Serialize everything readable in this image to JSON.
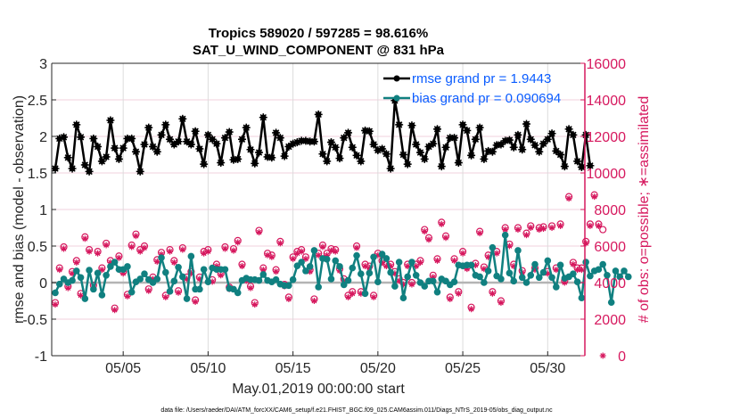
{
  "chart_data": {
    "type": "line",
    "title": [
      "Tropics 589020 / 597285 = 98.616%",
      "SAT_U_WIND_COMPONENT @ 831 hPa"
    ],
    "xlabel": "May.01,2019 00:00:00 start",
    "ylabel": "rmse and bias (model - observation)",
    "ylabel_right": "# of obs: o=possible; ∗=assimilated",
    "xlim_days": [
      0.0,
      31.4
    ],
    "ylim": [
      -1,
      3
    ],
    "ylim_right": [
      0,
      16000
    ],
    "x_ticks": [
      {
        "day": 4,
        "label": "05/05"
      },
      {
        "day": 9,
        "label": "05/10"
      },
      {
        "day": 14,
        "label": "05/15"
      },
      {
        "day": 19,
        "label": "05/20"
      },
      {
        "day": 24,
        "label": "05/25"
      },
      {
        "day": 29,
        "label": "05/30"
      }
    ],
    "y_ticks": [
      {
        "value": 3,
        "label": "3"
      },
      {
        "value": 2.5,
        "label": "2.5"
      },
      {
        "value": 2,
        "label": "2"
      },
      {
        "value": 1.5,
        "label": "1.5"
      },
      {
        "value": 1,
        "label": "1"
      },
      {
        "value": 0.5,
        "label": "0.5"
      },
      {
        "value": 0,
        "label": "0"
      },
      {
        "value": -0.5,
        "label": "-0.5"
      },
      {
        "value": -1,
        "label": "-1"
      }
    ],
    "y_ticks_right": [
      {
        "value": 16000,
        "label": "16000"
      },
      {
        "value": 14000,
        "label": "14000"
      },
      {
        "value": 12000,
        "label": "12000"
      },
      {
        "value": 10000,
        "label": "10000"
      },
      {
        "value": 8000,
        "label": "8000"
      },
      {
        "value": 6000,
        "label": "6000"
      },
      {
        "value": 4000,
        "label": "4000"
      },
      {
        "value": 2000,
        "label": "2000"
      },
      {
        "value": 0,
        "label": "0"
      }
    ],
    "grid": true,
    "legend": {
      "placement": "top-right",
      "entries": [
        {
          "label": "rmse grand pr = 1.9443",
          "color": "#000000",
          "marker": "asterisk"
        },
        {
          "label": "bias grand pr = 0.090694",
          "color": "#108080",
          "marker": "circle"
        }
      ]
    },
    "colors": {
      "rmse": "#000000",
      "bias": "#108080",
      "obs": "#d6185e",
      "zero": "#b4b4b4",
      "grid": "#f0d0dc"
    },
    "time_step_days": 0.25,
    "series": [
      {
        "name": "rmse",
        "values": [
          1.56,
          1.97,
          1.99,
          1.71,
          1.56,
          2.16,
          1.99,
          1.61,
          1.52,
          1.97,
          1.86,
          1.66,
          1.72,
          2.22,
          1.84,
          1.69,
          1.84,
          1.97,
          1.97,
          1.79,
          1.52,
          1.89,
          2.12,
          1.86,
          1.79,
          2.02,
          2.16,
          1.96,
          1.89,
          1.93,
          2.24,
          1.93,
          1.89,
          2.07,
          1.83,
          1.62,
          2.02,
          1.96,
          1.9,
          1.64,
          1.98,
          2.06,
          1.68,
          1.69,
          1.96,
          2.12,
          1.82,
          1.63,
          1.78,
          2.26,
          1.72,
          1.71,
          2.05,
          1.98,
          1.73,
          1.86,
          1.9,
          1.92,
          1.94,
          1.94,
          1.93,
          1.93,
          2.3,
          1.76,
          1.66,
          1.92,
          1.85,
          1.7,
          1.98,
          2.05,
          1.85,
          1.74,
          1.66,
          2.08,
          2.07,
          1.89,
          1.81,
          1.83,
          1.76,
          1.56,
          2.49,
          2.16,
          1.75,
          1.62,
          2.15,
          1.89,
          1.78,
          1.69,
          1.86,
          1.9,
          2.1,
          1.59,
          1.85,
          1.98,
          1.98,
          1.64,
          2.16,
          2.08,
          1.74,
          1.96,
          2.12,
          1.69,
          1.8,
          1.79,
          1.88,
          1.89,
          1.94,
          1.95,
          1.85,
          2.02,
          1.82,
          2.17,
          1.96,
          1.88,
          1.79,
          1.9,
          1.96,
          2.04,
          1.8,
          1.75,
          1.59,
          2.1,
          2.02,
          1.66,
          1.58,
          2.02,
          1.6
        ]
      },
      {
        "name": "bias",
        "values": [
          -0.14,
          -0.02,
          0.05,
          0.0,
          0.03,
          0.16,
          0.07,
          -0.22,
          0.17,
          -0.09,
          0.13,
          -0.17,
          0.1,
          0.22,
          0.28,
          0.18,
          0.18,
          0.22,
          -0.13,
          0.01,
          0.05,
          0.12,
          0.04,
          0.0,
          0.05,
          0.34,
          0.14,
          -0.12,
          0.02,
          0.21,
          0.08,
          -0.22,
          0.36,
          -0.09,
          -0.09,
          0.18,
          0.01,
          0.2,
          0.18,
          0.18,
          0.18,
          -0.08,
          -0.09,
          -0.14,
          0.03,
          0.06,
          0.04,
          0.04,
          0.03,
          0.11,
          0.03,
          0.01,
          0.04,
          -0.02,
          -0.04,
          -0.04,
          0.04,
          0.23,
          0.28,
          0.16,
          0.22,
          0.44,
          -0.06,
          0.33,
          0.32,
          0.05,
          0.3,
          0.22,
          -0.03,
          0.03,
          0.2,
          0.37,
          0.12,
          -0.15,
          0.13,
          0.35,
          0.01,
          0.39,
          0.33,
          0.14,
          -0.05,
          0.28,
          -0.21,
          0.08,
          0.28,
          0.1,
          0.0,
          -0.05,
          0.02,
          0.02,
          -0.13,
          0.05,
          0.02,
          -0.03,
          0.01,
          0.24,
          0.23,
          0.24,
          0.24,
          0.1,
          0.08,
          0.0,
          0.16,
          0.48,
          0.09,
          0.05,
          0.65,
          0.13,
          0.02,
          0.44,
          0.07,
          0.0,
          0.1,
          0.25,
          0.07,
          0.14,
          0.3,
          0.07,
          -0.06,
          0.24,
          0.06,
          0.08,
          0.12,
          0.01,
          -0.21,
          0.28,
          0.09,
          0.16,
          0.18,
          0.25,
          0.1,
          -0.27,
          0.16,
          0.08,
          0.16,
          0.08
        ],
        "note": "approximate, read from chart"
      },
      {
        "name": "obs_possible",
        "axis": "right",
        "values": [
          2900,
          4800,
          5950,
          3800,
          4600,
          5200,
          3400,
          6500,
          5800,
          3850,
          5700,
          4800,
          6150,
          5200,
          2600,
          5450,
          4600,
          3350,
          6050,
          6650,
          5800,
          6000,
          3650,
          4300,
          5250,
          5650,
          3300,
          5800,
          5200,
          3550,
          5900,
          4300,
          4600,
          3050,
          4300,
          5700,
          5800,
          4150,
          5000,
          4500,
          5950,
          3750,
          5850,
          6300,
          5000,
          4200,
          3800,
          2900,
          6850,
          4800,
          5600,
          5500,
          4700,
          6250,
          3900,
          3200,
          5400,
          5700,
          5800,
          5400,
          4700,
          3100,
          5600,
          6050,
          5600,
          5850,
          5800,
          4750,
          4200,
          3300,
          3500,
          6000,
          3500,
          5000,
          4900,
          3300,
          5600,
          5200,
          5000,
          5000,
          4600,
          4200,
          4000,
          5000,
          4000,
          5000,
          5200,
          6900,
          6450,
          4400,
          5300,
          7300,
          6550,
          3200,
          5300,
          3500,
          5700,
          4850,
          2650,
          5050,
          6800,
          4850,
          5500,
          3500,
          5700,
          3000,
          7000,
          6100,
          5000,
          7000,
          4650,
          6700,
          7100,
          4800,
          7000,
          7050,
          4600,
          7100,
          4800,
          7200,
          4100,
          8700,
          5100,
          4800,
          4800,
          6250,
          7200,
          8800,
          7200,
          6900
        ],
        "note": "approximate, read from chart"
      },
      {
        "name": "obs_assimilated",
        "axis": "right",
        "values": [
          2800,
          4700,
          5850,
          3700,
          4500,
          5100,
          3300,
          6400,
          5700,
          3750,
          5600,
          4700,
          6050,
          5100,
          2500,
          5350,
          4500,
          3250,
          5950,
          6550,
          5700,
          5900,
          3550,
          4200,
          5150,
          5550,
          3200,
          5700,
          5100,
          3450,
          5800,
          4200,
          4500,
          2950,
          4200,
          5600,
          5700,
          4050,
          4900,
          4400,
          5850,
          3650,
          5750,
          6200,
          4900,
          4100,
          3700,
          2800,
          6750,
          4700,
          5500,
          5400,
          4600,
          6150,
          3800,
          3100,
          5300,
          5600,
          5700,
          5300,
          4600,
          3000,
          5500,
          5950,
          5500,
          5750,
          5700,
          4650,
          4100,
          3200,
          3400,
          5900,
          3400,
          4900,
          4800,
          3200,
          5500,
          5100,
          4900,
          4900,
          4500,
          4100,
          3900,
          4900,
          3900,
          4900,
          5100,
          6800,
          6350,
          4300,
          5200,
          7200,
          6450,
          3100,
          5200,
          3400,
          5600,
          4750,
          2550,
          4950,
          6700,
          4750,
          5400,
          3400,
          5600,
          2900,
          6900,
          6000,
          4900,
          6900,
          4550,
          6600,
          7000,
          4700,
          6900,
          6950,
          4500,
          7000,
          4700,
          7100,
          4000,
          8600,
          5000,
          4700,
          4700,
          6150,
          7100,
          8700,
          7100,
          0
        ],
        "note": "approximate, read from chart"
      }
    ]
  },
  "footnote": "data file: /Users/raeder/DAI/ATM_forcXX/CAM6_setup/f.e21.FHIST_BGC.f09_025.CAM6assim.011/Diags_NTrS_2019-05/obs_diag_output.nc"
}
